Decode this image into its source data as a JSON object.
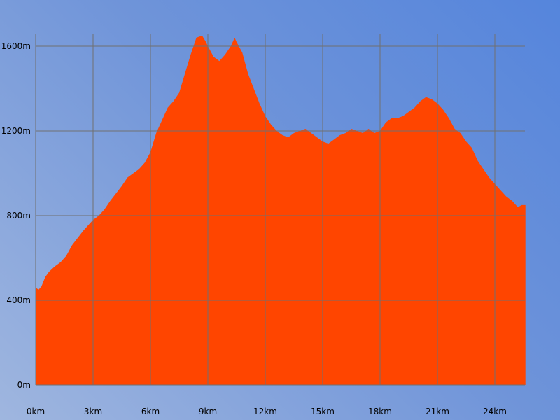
{
  "chart_data": {
    "type": "area",
    "title": "",
    "xlabel": "",
    "ylabel": "",
    "xlim": [
      0,
      25.6
    ],
    "ylim": [
      0,
      1650
    ],
    "x_ticks": [
      0,
      3,
      6,
      9,
      12,
      15,
      18,
      21,
      24
    ],
    "x_tick_labels": [
      "0km",
      "3km",
      "6km",
      "9km",
      "12km",
      "15km",
      "18km",
      "21km",
      "24km"
    ],
    "y_ticks": [
      0,
      400,
      800,
      1200,
      1600
    ],
    "y_tick_labels": [
      "0m",
      "400m",
      "800m",
      "1200m",
      "1600m"
    ],
    "grid": true,
    "colors": {
      "fill": "#ff4500",
      "grid": "#707070"
    },
    "series": [
      {
        "x": [
          0,
          0.15,
          0.3,
          0.5,
          0.7,
          1.0,
          1.3,
          1.6,
          1.9,
          2.2,
          2.5,
          2.8,
          3.0,
          3.3,
          3.6,
          3.9,
          4.2,
          4.5,
          4.8,
          5.1,
          5.4,
          5.7,
          6.0,
          6.1,
          6.3,
          6.6,
          6.9,
          7.2,
          7.5,
          7.8,
          8.1,
          8.4,
          8.7,
          8.9,
          9.0,
          9.3,
          9.6,
          9.9,
          10.2,
          10.4,
          10.5,
          10.8,
          11.1,
          11.4,
          11.7,
          12.0,
          12.3,
          12.6,
          12.9,
          13.2,
          13.5,
          13.8,
          14.1,
          14.4,
          14.7,
          15.0,
          15.3,
          15.6,
          15.9,
          16.2,
          16.5,
          16.8,
          17.1,
          17.4,
          17.7,
          18.0,
          18.3,
          18.6,
          18.9,
          19.2,
          19.5,
          19.8,
          20.1,
          20.4,
          20.7,
          21.0,
          21.3,
          21.6,
          21.9,
          22.2,
          22.5,
          22.8,
          23.1,
          23.4,
          23.7,
          24.0,
          24.3,
          24.6,
          24.9,
          25.2,
          25.4,
          25.6
        ],
        "y": [
          460,
          450,
          465,
          510,
          535,
          560,
          580,
          610,
          660,
          695,
          730,
          760,
          780,
          800,
          830,
          870,
          905,
          940,
          980,
          1000,
          1020,
          1050,
          1100,
          1130,
          1190,
          1250,
          1310,
          1340,
          1380,
          1470,
          1560,
          1640,
          1650,
          1620,
          1600,
          1550,
          1530,
          1560,
          1600,
          1640,
          1620,
          1570,
          1470,
          1400,
          1330,
          1270,
          1230,
          1200,
          1180,
          1170,
          1190,
          1200,
          1210,
          1190,
          1170,
          1150,
          1140,
          1160,
          1180,
          1190,
          1210,
          1200,
          1190,
          1210,
          1190,
          1200,
          1240,
          1260,
          1260,
          1270,
          1290,
          1310,
          1340,
          1360,
          1350,
          1330,
          1300,
          1260,
          1210,
          1190,
          1150,
          1120,
          1060,
          1020,
          980,
          950,
          920,
          890,
          870,
          840,
          850,
          850
        ]
      }
    ]
  }
}
